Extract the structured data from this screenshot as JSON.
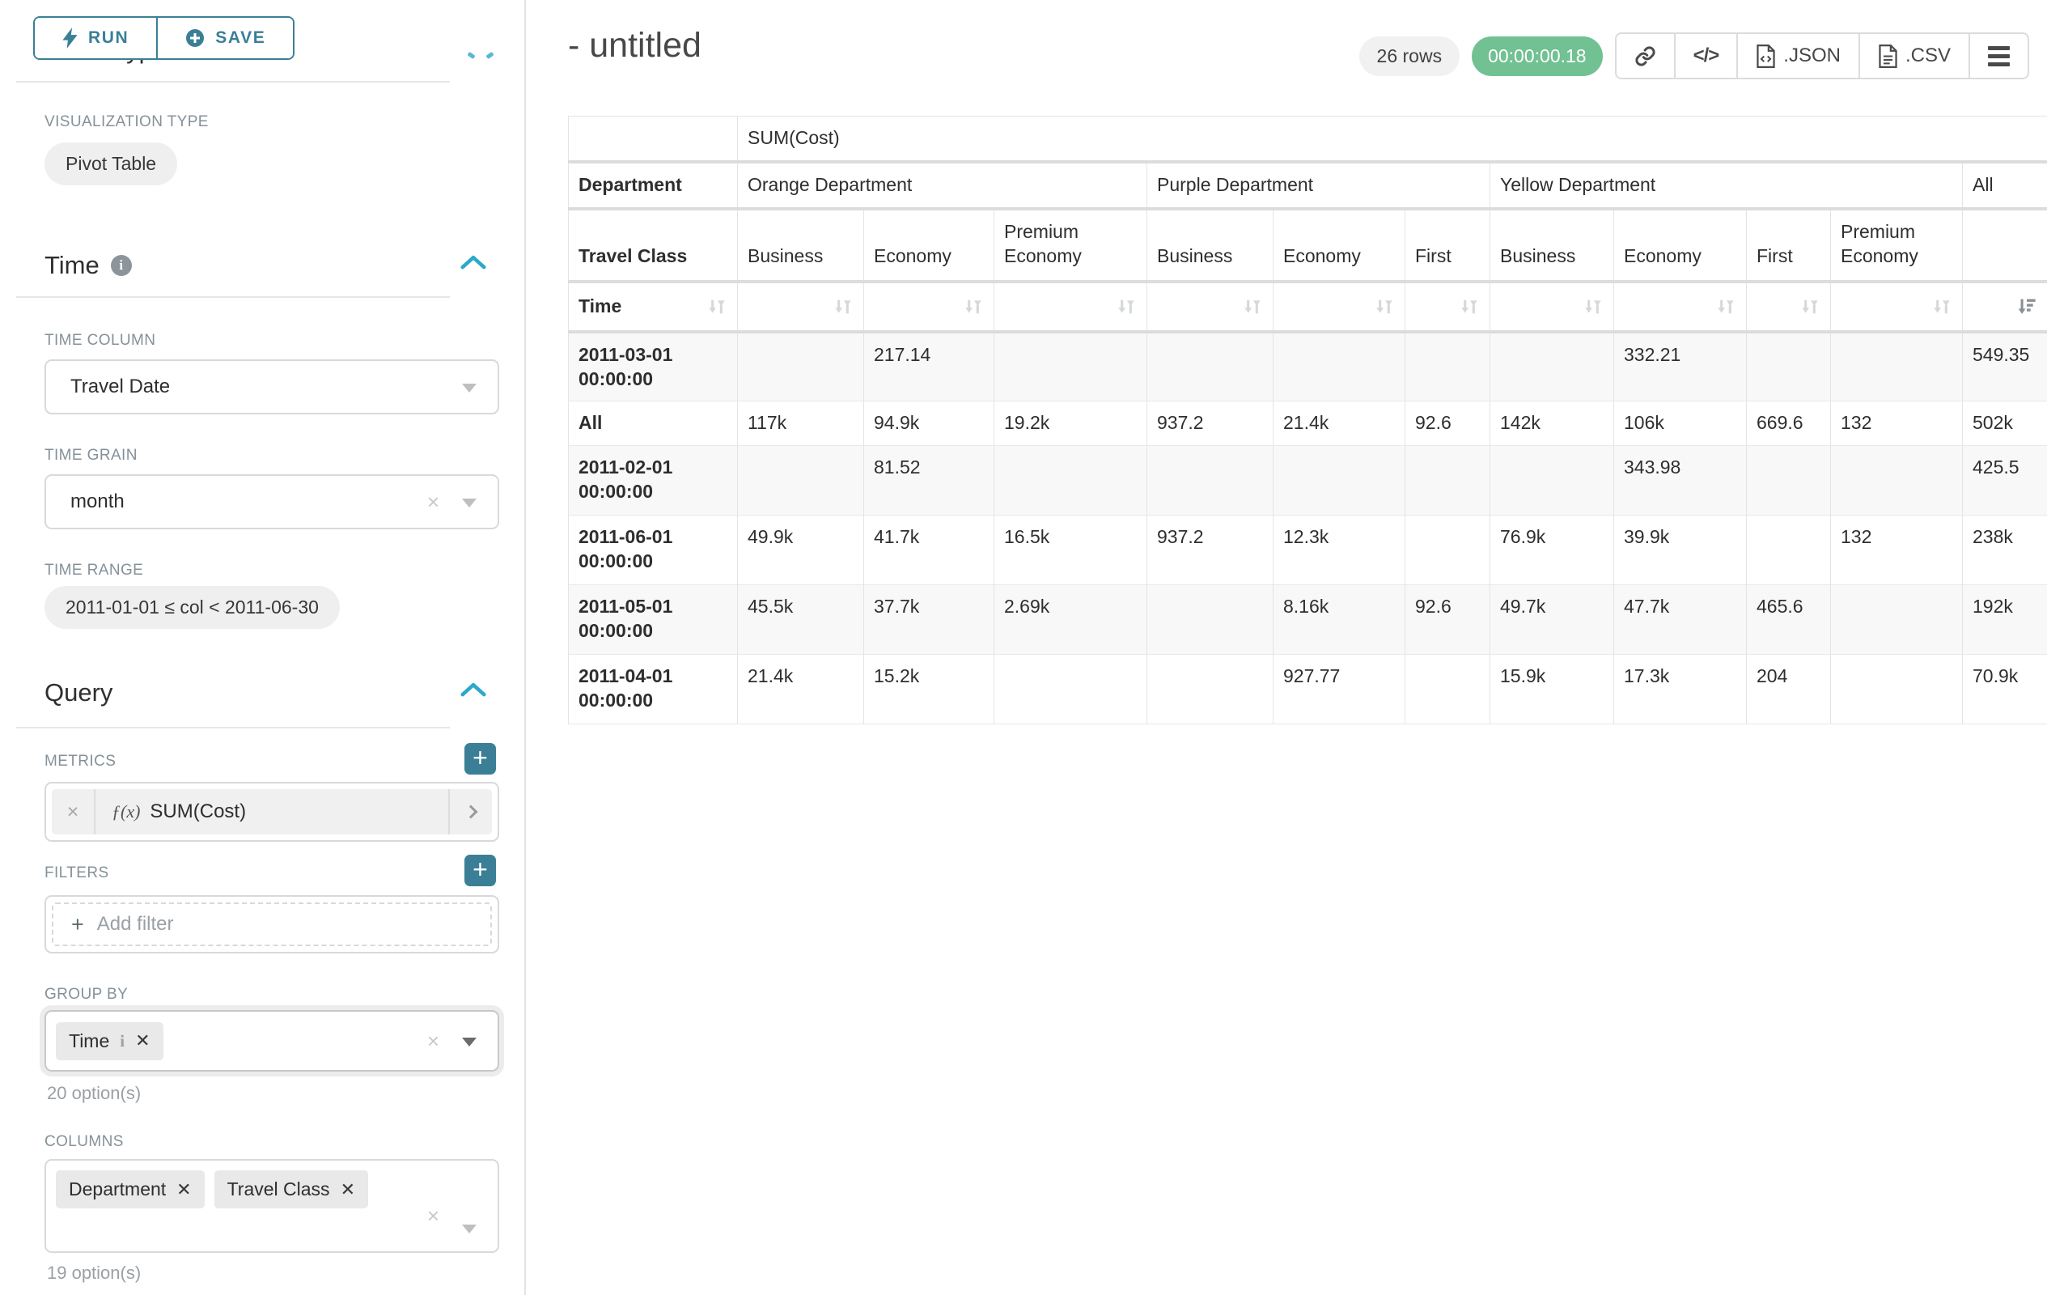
{
  "left_panel": {
    "run_label": "RUN",
    "save_label": "SAVE",
    "section_chart_type": "Chart Type",
    "visualization_type_label": "VISUALIZATION TYPE",
    "visualization_type_value": "Pivot Table",
    "time_section": "Time",
    "time_column_label": "TIME COLUMN",
    "time_column_value": "Travel Date",
    "time_grain_label": "TIME GRAIN",
    "time_grain_value": "month",
    "time_range_label": "TIME RANGE",
    "time_range_value": "2011-01-01 ≤ col < 2011-06-30",
    "query_section": "Query",
    "metrics_label": "METRICS",
    "metric_fx": "ƒ(x)",
    "metric_chip": "SUM(Cost)",
    "filters_label": "FILTERS",
    "add_filter_label": "Add filter",
    "group_by_label": "GROUP BY",
    "group_by_chips": [
      {
        "label": "Time",
        "has_info": true
      }
    ],
    "group_by_options": "20 option(s)",
    "columns_label": "COLUMNS",
    "columns_chips": [
      {
        "label": "Department",
        "has_info": false
      },
      {
        "label": "Travel Class",
        "has_info": false
      }
    ],
    "columns_options": "19 option(s)"
  },
  "header": {
    "title": "- untitled",
    "rows_badge": "26 rows",
    "timer": "00:00:00.18",
    "json_label": ".JSON",
    "csv_label": ".CSV"
  },
  "icons": {
    "run": "lightning-bolt",
    "save": "plus-circle",
    "sections": "chevron-up",
    "selects": "caret-down",
    "clear": "x",
    "info": "info-circle",
    "metric_fn": "fx",
    "metric_expand": "chevron-right",
    "add_metric": "plus",
    "share": "link-chain",
    "embed": "code-brackets",
    "json_export": "file-code",
    "csv_export": "file-text",
    "menu": "hamburger",
    "sort_inactive": "sort-arrows-down-up",
    "sort_active": "sort-amount-desc"
  },
  "colors": {
    "accent_teal": "#3a7f96",
    "bright_teal": "#2ca8c9",
    "timer_green": "#71c193",
    "label_gray": "#859199",
    "stripe_gray": "#f8f8f8",
    "border_gray": "#d9d9d9"
  },
  "pivot": {
    "metric_header": "SUM(Cost)",
    "department_label": "Department",
    "travel_class_label": "Travel Class",
    "time_label": "Time",
    "groups": [
      {
        "name": "Orange Department",
        "classes": [
          "Business",
          "Economy",
          "Premium Economy"
        ]
      },
      {
        "name": "Purple Department",
        "classes": [
          "Business",
          "Economy",
          "First"
        ]
      },
      {
        "name": "Yellow Department",
        "classes": [
          "Business",
          "Economy",
          "First",
          "Premium Economy"
        ]
      },
      {
        "name": "All",
        "classes": [
          ""
        ]
      }
    ],
    "rows": [
      {
        "key": "2011-03-01 00:00:00",
        "values": [
          "",
          "217.14",
          "",
          "",
          "",
          "",
          "",
          "332.21",
          "",
          "",
          "549.35"
        ]
      },
      {
        "key": "All",
        "values": [
          "117k",
          "94.9k",
          "19.2k",
          "937.2",
          "21.4k",
          "92.6",
          "142k",
          "106k",
          "669.6",
          "132",
          "502k"
        ]
      },
      {
        "key": "2011-02-01 00:00:00",
        "values": [
          "",
          "81.52",
          "",
          "",
          "",
          "",
          "",
          "343.98",
          "",
          "",
          "425.5"
        ]
      },
      {
        "key": "2011-06-01 00:00:00",
        "values": [
          "49.9k",
          "41.7k",
          "16.5k",
          "937.2",
          "12.3k",
          "",
          "76.9k",
          "39.9k",
          "",
          "132",
          "238k"
        ]
      },
      {
        "key": "2011-05-01 00:00:00",
        "values": [
          "45.5k",
          "37.7k",
          "2.69k",
          "",
          "8.16k",
          "92.6",
          "49.7k",
          "47.7k",
          "465.6",
          "",
          "192k"
        ]
      },
      {
        "key": "2011-04-01 00:00:00",
        "values": [
          "21.4k",
          "15.2k",
          "",
          "",
          "927.77",
          "",
          "15.9k",
          "17.3k",
          "204",
          "",
          "70.9k"
        ]
      }
    ]
  }
}
